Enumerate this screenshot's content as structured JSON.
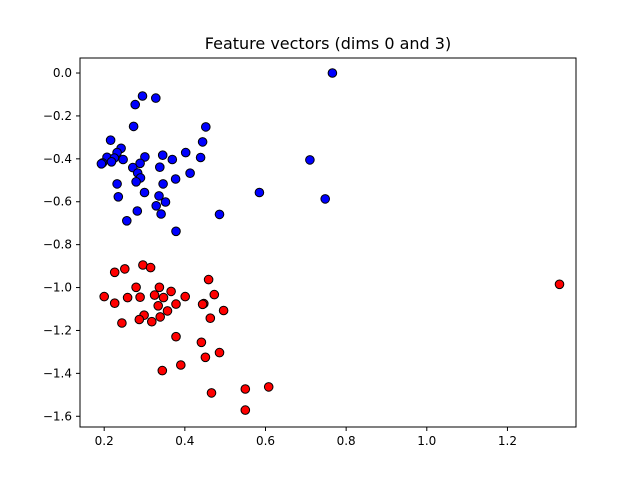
{
  "chart_data": {
    "type": "scatter",
    "title": "Feature vectors (dims 0 and 3)",
    "xlabel": "",
    "ylabel": "",
    "xlim": [
      0.14,
      1.37
    ],
    "ylim": [
      -1.65,
      0.07
    ],
    "xticks": [
      0.2,
      0.4,
      0.6,
      0.8,
      1.0,
      1.2
    ],
    "xtick_labels": [
      "0.2",
      "0.4",
      "0.6",
      "0.8",
      "1.0",
      "1.2"
    ],
    "yticks": [
      0.0,
      -0.2,
      -0.4,
      -0.6,
      -0.8,
      -1.0,
      -1.2,
      -1.4,
      -1.6
    ],
    "ytick_labels": [
      "0.0",
      "−0.2",
      "−0.4",
      "−0.6",
      "−0.8",
      "−1.0",
      "−1.2",
      "−1.4",
      "−1.6"
    ],
    "grid": false,
    "legend": "none",
    "series": [
      {
        "color": "#0000ff",
        "edgecolor": "#000000",
        "x": [
          0.766,
          0.295,
          0.328,
          0.277,
          0.452,
          0.273,
          0.216,
          0.444,
          0.242,
          0.232,
          0.402,
          0.207,
          0.225,
          0.218,
          0.196,
          0.247,
          0.193,
          0.301,
          0.439,
          0.345,
          0.369,
          0.289,
          0.338,
          0.271,
          0.283,
          0.413,
          0.71,
          0.29,
          0.279,
          0.377,
          0.232,
          0.346,
          0.235,
          0.3,
          0.336,
          0.585,
          0.748,
          0.352,
          0.329,
          0.282,
          0.486,
          0.341,
          0.256,
          0.378
        ],
        "y": [
          0.0,
          -0.107,
          -0.117,
          -0.147,
          -0.251,
          -0.249,
          -0.313,
          -0.321,
          -0.351,
          -0.371,
          -0.371,
          -0.393,
          -0.396,
          -0.414,
          -0.419,
          -0.403,
          -0.423,
          -0.391,
          -0.394,
          -0.383,
          -0.403,
          -0.421,
          -0.439,
          -0.441,
          -0.466,
          -0.467,
          -0.405,
          -0.489,
          -0.507,
          -0.494,
          -0.517,
          -0.517,
          -0.577,
          -0.557,
          -0.573,
          -0.557,
          -0.587,
          -0.601,
          -0.619,
          -0.643,
          -0.659,
          -0.657,
          -0.689,
          -0.738
        ]
      },
      {
        "color": "#ff0000",
        "edgecolor": "#000000",
        "x": [
          1.329,
          0.296,
          0.315,
          0.251,
          0.226,
          0.459,
          0.279,
          0.337,
          0.366,
          0.325,
          0.473,
          0.2,
          0.289,
          0.347,
          0.401,
          0.258,
          0.378,
          0.226,
          0.447,
          0.444,
          0.334,
          0.357,
          0.496,
          0.299,
          0.318,
          0.339,
          0.463,
          0.287,
          0.244,
          0.378,
          0.441,
          0.486,
          0.451,
          0.39,
          0.344,
          0.55,
          0.608,
          0.466,
          0.55
        ],
        "y": [
          -0.985,
          -0.895,
          -0.907,
          -0.913,
          -0.929,
          -0.963,
          -0.999,
          -0.999,
          -1.018,
          -1.035,
          -1.033,
          -1.042,
          -1.045,
          -1.047,
          -1.042,
          -1.047,
          -1.077,
          -1.073,
          -1.075,
          -1.078,
          -1.085,
          -1.109,
          -1.107,
          -1.129,
          -1.159,
          -1.137,
          -1.143,
          -1.149,
          -1.165,
          -1.229,
          -1.255,
          -1.303,
          -1.325,
          -1.361,
          -1.387,
          -1.473,
          -1.463,
          -1.491,
          -1.571
        ]
      }
    ]
  }
}
